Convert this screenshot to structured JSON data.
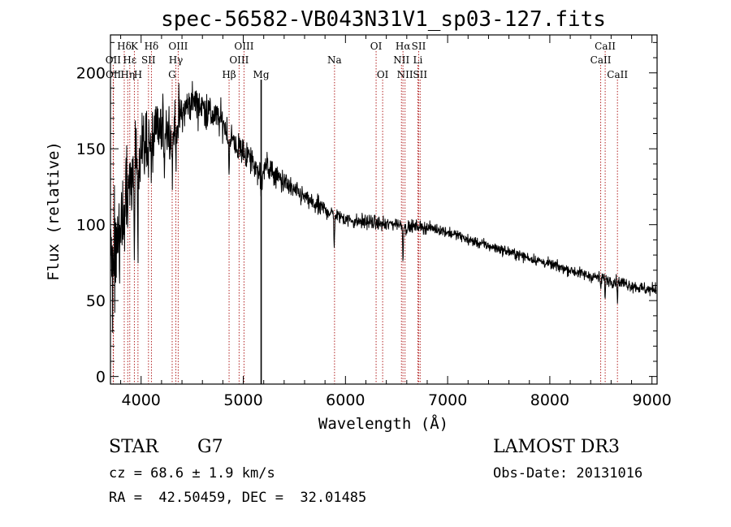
{
  "chart_data": {
    "type": "line",
    "title": "spec-56582-VB043N31V1_sp03-127.fits",
    "xlabel": "Wavelength (Å)",
    "ylabel": "Flux (relative)",
    "xlim": [
      3700,
      9050
    ],
    "ylim": [
      -5,
      225
    ],
    "xticks": [
      4000,
      5000,
      6000,
      7000,
      8000,
      9000
    ],
    "yticks": [
      0,
      50,
      100,
      150,
      200
    ],
    "spectrum_knots": [
      [
        3700,
        75
      ],
      [
        3750,
        85
      ],
      [
        3800,
        95
      ],
      [
        3850,
        110
      ],
      [
        3900,
        125
      ],
      [
        3950,
        140
      ],
      [
        4000,
        150
      ],
      [
        4050,
        152
      ],
      [
        4100,
        155
      ],
      [
        4150,
        160
      ],
      [
        4200,
        162
      ],
      [
        4250,
        165
      ],
      [
        4300,
        160
      ],
      [
        4350,
        168
      ],
      [
        4400,
        172
      ],
      [
        4450,
        178
      ],
      [
        4500,
        182
      ],
      [
        4550,
        180
      ],
      [
        4600,
        178
      ],
      [
        4650,
        175
      ],
      [
        4700,
        172
      ],
      [
        4750,
        170
      ],
      [
        4800,
        168
      ],
      [
        4850,
        160
      ],
      [
        4900,
        155
      ],
      [
        4950,
        150
      ],
      [
        5000,
        148
      ],
      [
        5050,
        145
      ],
      [
        5100,
        140
      ],
      [
        5150,
        135
      ],
      [
        5200,
        140
      ],
      [
        5300,
        133
      ],
      [
        5400,
        128
      ],
      [
        5500,
        122
      ],
      [
        5600,
        118
      ],
      [
        5700,
        113
      ],
      [
        5800,
        110
      ],
      [
        5900,
        106
      ],
      [
        6000,
        104
      ],
      [
        6100,
        102
      ],
      [
        6200,
        102
      ],
      [
        6300,
        101
      ],
      [
        6400,
        100
      ],
      [
        6500,
        101
      ],
      [
        6600,
        98
      ],
      [
        6700,
        99
      ],
      [
        6800,
        98
      ],
      [
        6900,
        97
      ],
      [
        7000,
        95
      ],
      [
        7100,
        93
      ],
      [
        7200,
        90
      ],
      [
        7300,
        88
      ],
      [
        7400,
        86
      ],
      [
        7500,
        84
      ],
      [
        7600,
        82
      ],
      [
        7700,
        80
      ],
      [
        7800,
        78
      ],
      [
        7900,
        76
      ],
      [
        8000,
        74
      ],
      [
        8100,
        72
      ],
      [
        8200,
        70
      ],
      [
        8300,
        68
      ],
      [
        8400,
        66
      ],
      [
        8500,
        65
      ],
      [
        8600,
        63
      ],
      [
        8700,
        62
      ],
      [
        8800,
        60
      ],
      [
        8900,
        58
      ],
      [
        9000,
        57
      ],
      [
        9050,
        58
      ]
    ],
    "absorption_dips": [
      [
        3934,
        45
      ],
      [
        3969,
        40
      ],
      [
        4101,
        25
      ],
      [
        4227,
        20
      ],
      [
        4305,
        30
      ],
      [
        4340,
        25
      ],
      [
        4861,
        25
      ],
      [
        5172,
        20
      ],
      [
        5183,
        15
      ],
      [
        5890,
        20
      ],
      [
        6563,
        20
      ],
      [
        8498,
        8
      ],
      [
        8542,
        10
      ],
      [
        8662,
        10
      ]
    ],
    "noise": [
      [
        3700,
        45
      ],
      [
        4000,
        30
      ],
      [
        4500,
        15
      ],
      [
        5000,
        12
      ],
      [
        5500,
        8
      ],
      [
        6000,
        6
      ],
      [
        7000,
        4
      ],
      [
        8000,
        4
      ],
      [
        9000,
        5
      ]
    ],
    "line_markers": [
      {
        "label": "Hδ",
        "wavelength": 3835,
        "row": 1,
        "style": "dotted"
      },
      {
        "label": "K",
        "wavelength": 3934,
        "row": 1,
        "style": "dotted"
      },
      {
        "label": "Hδ",
        "wavelength": 4101,
        "row": 1,
        "style": "dotted"
      },
      {
        "label": "OIII",
        "wavelength": 4363,
        "row": 1,
        "style": "dotted"
      },
      {
        "label": "OIII",
        "wavelength": 5007,
        "row": 1,
        "style": "dotted"
      },
      {
        "label": "OI",
        "wavelength": 6300,
        "row": 1,
        "style": "dotted"
      },
      {
        "label": "Hα",
        "wavelength": 6563,
        "row": 1,
        "style": "dotted"
      },
      {
        "label": "SII",
        "wavelength": 6717,
        "row": 1,
        "style": "dotted"
      },
      {
        "label": "CaII",
        "wavelength": 8542,
        "row": 1,
        "style": "dotted"
      },
      {
        "label": "OII",
        "wavelength": 3727,
        "row": 2,
        "style": "dotted"
      },
      {
        "label": "Hε",
        "wavelength": 3889,
        "row": 2,
        "style": "dotted"
      },
      {
        "label": "SII",
        "wavelength": 4072,
        "row": 2,
        "style": "dotted"
      },
      {
        "label": "Hγ",
        "wavelength": 4340,
        "row": 2,
        "style": "dotted"
      },
      {
        "label": "OIII",
        "wavelength": 4959,
        "row": 2,
        "style": "dotted"
      },
      {
        "label": "Na",
        "wavelength": 5893,
        "row": 2,
        "style": "dotted"
      },
      {
        "label": "NII",
        "wavelength": 6548,
        "row": 2,
        "style": "dotted"
      },
      {
        "label": "Li",
        "wavelength": 6708,
        "row": 2,
        "style": "dotted"
      },
      {
        "label": "CaII",
        "wavelength": 8498,
        "row": 2,
        "style": "dotted"
      },
      {
        "label": "OII",
        "wavelength": 3729,
        "row": 3,
        "style": "dotted"
      },
      {
        "label": "Hη",
        "wavelength": 3869,
        "row": 3,
        "style": "dotted"
      },
      {
        "label": "H",
        "wavelength": 3969,
        "row": 3,
        "style": "dotted"
      },
      {
        "label": "G",
        "wavelength": 4304,
        "row": 3,
        "style": "dotted"
      },
      {
        "label": "Hβ",
        "wavelength": 4861,
        "row": 3,
        "style": "dotted"
      },
      {
        "label": "Mg",
        "wavelength": 5175,
        "row": 3,
        "style": "solid"
      },
      {
        "label": "OI",
        "wavelength": 6364,
        "row": 3,
        "style": "dotted"
      },
      {
        "label": "NII",
        "wavelength": 6583,
        "row": 3,
        "style": "dotted"
      },
      {
        "label": "SII",
        "wavelength": 6731,
        "row": 3,
        "style": "dotted"
      },
      {
        "label": "CaII",
        "wavelength": 8662,
        "row": 3,
        "style": "dotted"
      }
    ],
    "line_color": "#000000",
    "marker_color": "#b22222"
  },
  "info": {
    "class": "STAR",
    "subclass": "G7",
    "survey": "LAMOST DR3",
    "redshift": "cz = 68.6 ± 1.9 km/s",
    "obs_date": "Obs-Date: 20131016",
    "coords": "RA =  42.50459, DEC =  32.01485"
  }
}
